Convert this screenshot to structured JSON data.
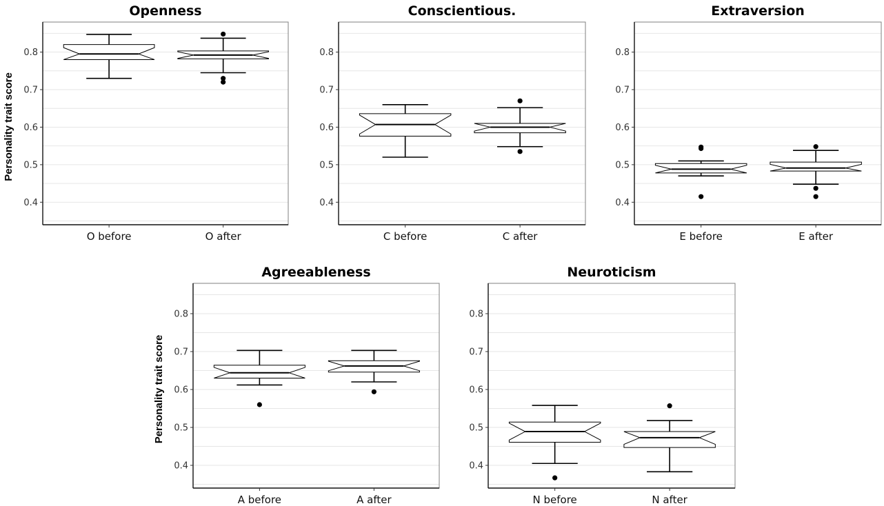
{
  "y_axis_label": "Personality trait score",
  "chart_data": [
    {
      "type": "box",
      "title": "Openness",
      "ylabel": "Personality trait score",
      "ylim": [
        0.34,
        0.88
      ],
      "yticks": [
        "0.4",
        "0.5",
        "0.6",
        "0.7",
        "0.8"
      ],
      "grid": true,
      "notched": true,
      "categories": [
        "O before",
        "O after"
      ],
      "boxes": [
        {
          "median": 0.795,
          "q1": 0.78,
          "q3": 0.82,
          "whisker_low": 0.73,
          "whisker_high": 0.847,
          "outliers": []
        },
        {
          "median": 0.792,
          "q1": 0.782,
          "q3": 0.803,
          "whisker_low": 0.745,
          "whisker_high": 0.837,
          "outliers": [
            0.848,
            0.73,
            0.72
          ]
        }
      ]
    },
    {
      "type": "box",
      "title": "Conscientious.",
      "ylabel": "",
      "ylim": [
        0.34,
        0.88
      ],
      "yticks": [
        "0.4",
        "0.5",
        "0.6",
        "0.7",
        "0.8"
      ],
      "grid": true,
      "notched": true,
      "categories": [
        "C before",
        "C after"
      ],
      "boxes": [
        {
          "median": 0.607,
          "q1": 0.576,
          "q3": 0.636,
          "whisker_low": 0.52,
          "whisker_high": 0.66,
          "outliers": []
        },
        {
          "median": 0.6,
          "q1": 0.585,
          "q3": 0.61,
          "whisker_low": 0.548,
          "whisker_high": 0.652,
          "outliers": [
            0.67,
            0.535
          ]
        }
      ]
    },
    {
      "type": "box",
      "title": "Extraversion",
      "ylabel": "",
      "ylim": [
        0.34,
        0.88
      ],
      "yticks": [
        "0.4",
        "0.5",
        "0.6",
        "0.7",
        "0.8"
      ],
      "grid": true,
      "notched": true,
      "categories": [
        "E before",
        "E after"
      ],
      "boxes": [
        {
          "median": 0.488,
          "q1": 0.478,
          "q3": 0.503,
          "whisker_low": 0.47,
          "whisker_high": 0.51,
          "outliers": [
            0.547,
            0.543,
            0.415
          ]
        },
        {
          "median": 0.491,
          "q1": 0.483,
          "q3": 0.507,
          "whisker_low": 0.448,
          "whisker_high": 0.538,
          "outliers": [
            0.548,
            0.437,
            0.415
          ]
        }
      ]
    },
    {
      "type": "box",
      "title": "Agreeableness",
      "ylabel": "Personality trait score",
      "ylim": [
        0.34,
        0.88
      ],
      "yticks": [
        "0.4",
        "0.5",
        "0.6",
        "0.7",
        "0.8"
      ],
      "grid": true,
      "notched": true,
      "categories": [
        "A before",
        "A after"
      ],
      "boxes": [
        {
          "median": 0.644,
          "q1": 0.63,
          "q3": 0.664,
          "whisker_low": 0.612,
          "whisker_high": 0.703,
          "outliers": [
            0.56
          ]
        },
        {
          "median": 0.662,
          "q1": 0.646,
          "q3": 0.676,
          "whisker_low": 0.62,
          "whisker_high": 0.703,
          "outliers": [
            0.594
          ]
        }
      ]
    },
    {
      "type": "box",
      "title": "Neuroticism",
      "ylabel": "",
      "ylim": [
        0.34,
        0.88
      ],
      "yticks": [
        "0.4",
        "0.5",
        "0.6",
        "0.7",
        "0.8"
      ],
      "grid": true,
      "notched": true,
      "categories": [
        "N before",
        "N after"
      ],
      "boxes": [
        {
          "median": 0.489,
          "q1": 0.461,
          "q3": 0.514,
          "whisker_low": 0.405,
          "whisker_high": 0.558,
          "outliers": [
            0.367
          ]
        },
        {
          "median": 0.473,
          "q1": 0.447,
          "q3": 0.489,
          "whisker_low": 0.383,
          "whisker_high": 0.518,
          "outliers": [
            0.557
          ]
        }
      ]
    }
  ]
}
